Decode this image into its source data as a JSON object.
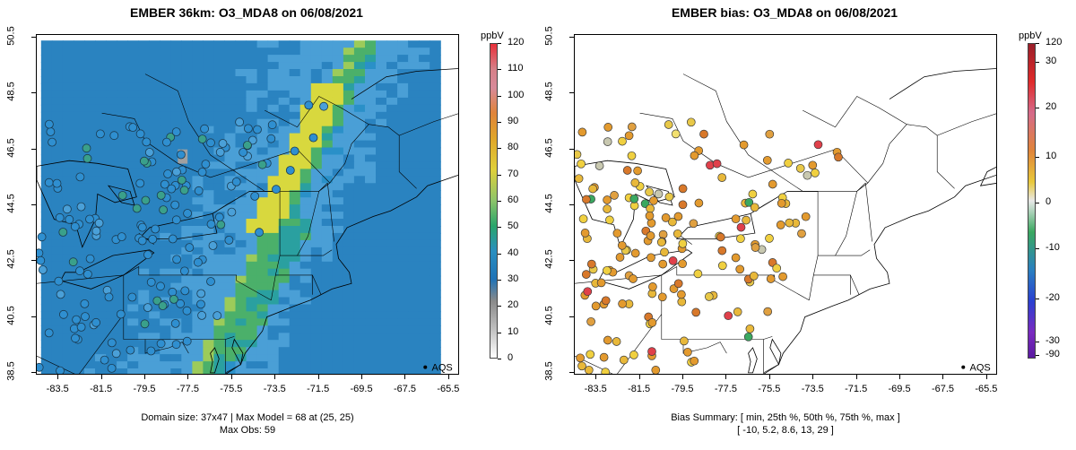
{
  "left": {
    "title": "EMBER 36km: O3_MDA8 on 06/08/2021",
    "footer_line1": "Domain size: 37x47 | Max Model = 68 at (25, 25)",
    "footer_line2": "Max Obs: 59",
    "legend_label": "AQS",
    "colorbar_unit": "ppbV",
    "colorbar_ticks": [
      "120",
      "110",
      "100",
      "90",
      "80",
      "70",
      "60",
      "50",
      "40",
      "30",
      "20",
      "10",
      "0"
    ]
  },
  "right": {
    "title": "EMBER bias: O3_MDA8 on 06/08/2021",
    "footer_line1": "Bias Summary: [ min, 25th %, 50th %, 75th %, max ]",
    "footer_line2": "[ -10,   5.2,   8.6,   13,   29 ]",
    "legend_label": "AQS",
    "colorbar_unit": "ppbV",
    "colorbar_ticks": [
      "120",
      "30",
      "20",
      "10",
      "0",
      "-10",
      "-20",
      "-30",
      "-90"
    ]
  },
  "x_ticks": [
    "-83.5",
    "-81.5",
    "-79.5",
    "-77.5",
    "-75.5",
    "-73.5",
    "-71.5",
    "-69.5",
    "-67.5",
    "-65.5"
  ],
  "y_ticks": [
    "50.5",
    "48.5",
    "46.5",
    "44.5",
    "42.5",
    "40.5",
    "38.5"
  ],
  "map_data": {
    "lon_range": [
      -84.5,
      -65.0
    ],
    "lat_range": [
      38.4,
      50.6
    ],
    "model_max": 68,
    "model_max_cell": "(25, 25)",
    "obs_max": 59,
    "domain_size": "37x47",
    "bias_summary": {
      "min": -10,
      "p25": 5.2,
      "p50": 8.6,
      "p75": 13,
      "max": 29
    }
  },
  "colors": {
    "ocean_blue": "#4a9fd6",
    "land_blue": "#2a83c0",
    "coast_green": "#4bb06a",
    "plume_yellow": "#d8d83e",
    "bias_orange": "#e39a2e",
    "bias_yellow": "#f0d040",
    "bias_red": "#e0404a"
  }
}
